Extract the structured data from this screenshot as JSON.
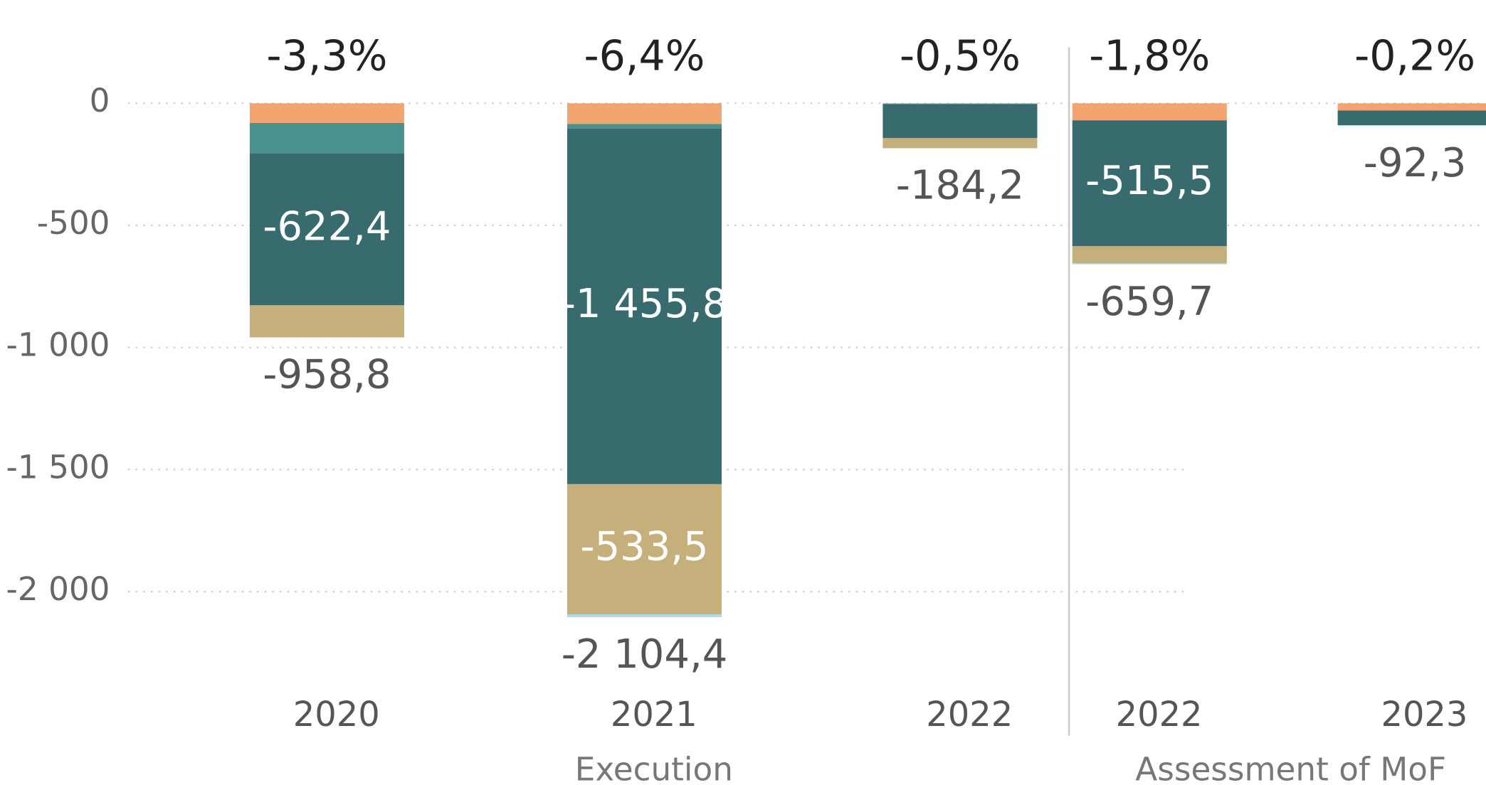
{
  "chart_data": {
    "type": "stacked_bar",
    "categories": [
      "2020",
      "2021",
      "2022",
      "2022",
      "2023"
    ],
    "groups": [
      {
        "label": "Execution",
        "categories": [
          0,
          1,
          2
        ]
      },
      {
        "label": "Assessment of MoF",
        "categories": [
          3,
          4
        ]
      }
    ],
    "series": [
      {
        "color": "#F4A46E",
        "values": [
          -81,
          -85,
          -3,
          -70,
          -30
        ],
        "value_labels": [
          null,
          null,
          null,
          null,
          null
        ]
      },
      {
        "color": "#4A9090",
        "values": [
          -124,
          -19,
          0,
          0,
          0
        ],
        "value_labels": [
          null,
          null,
          null,
          null,
          null
        ]
      },
      {
        "color": "#376B6D",
        "values": [
          -622.4,
          -1455.8,
          -140,
          -515.5,
          -60
        ],
        "value_labels": [
          "-622,4",
          "-1 455,8",
          null,
          "-515,5",
          null
        ]
      },
      {
        "color": "#C5AF7A",
        "values": [
          -131.4,
          -533.5,
          -41.2,
          -70,
          0
        ],
        "value_labels": [
          null,
          "-533,5",
          null,
          null,
          null
        ]
      },
      {
        "color": "#A8DDE8",
        "values": [
          0,
          -11.1,
          0,
          -4.2,
          -2.3
        ],
        "value_labels": [
          null,
          null,
          null,
          null,
          null
        ]
      }
    ],
    "totals": [
      -958.8,
      -2104.4,
      -184.2,
      -659.7,
      -92.3
    ],
    "total_labels": [
      "-958,8",
      "-2 104,4",
      "-184,2",
      "-659,7",
      "-92,3"
    ],
    "percents": [
      -3.3,
      -6.4,
      -0.5,
      -1.8,
      -0.2
    ],
    "percent_labels": [
      "-3,3%",
      "-6,4%",
      "-0,5%",
      "-1,8%",
      "-0,2%"
    ],
    "ylim": [
      -2400,
      0
    ],
    "yticks": [
      0,
      -500,
      {
        "value": -1000,
        "label": "-1 000"
      },
      {
        "value": -1500,
        "label": "-1 500"
      },
      {
        "value": -2000,
        "label": "-2 000"
      }
    ],
    "grid": true
  }
}
